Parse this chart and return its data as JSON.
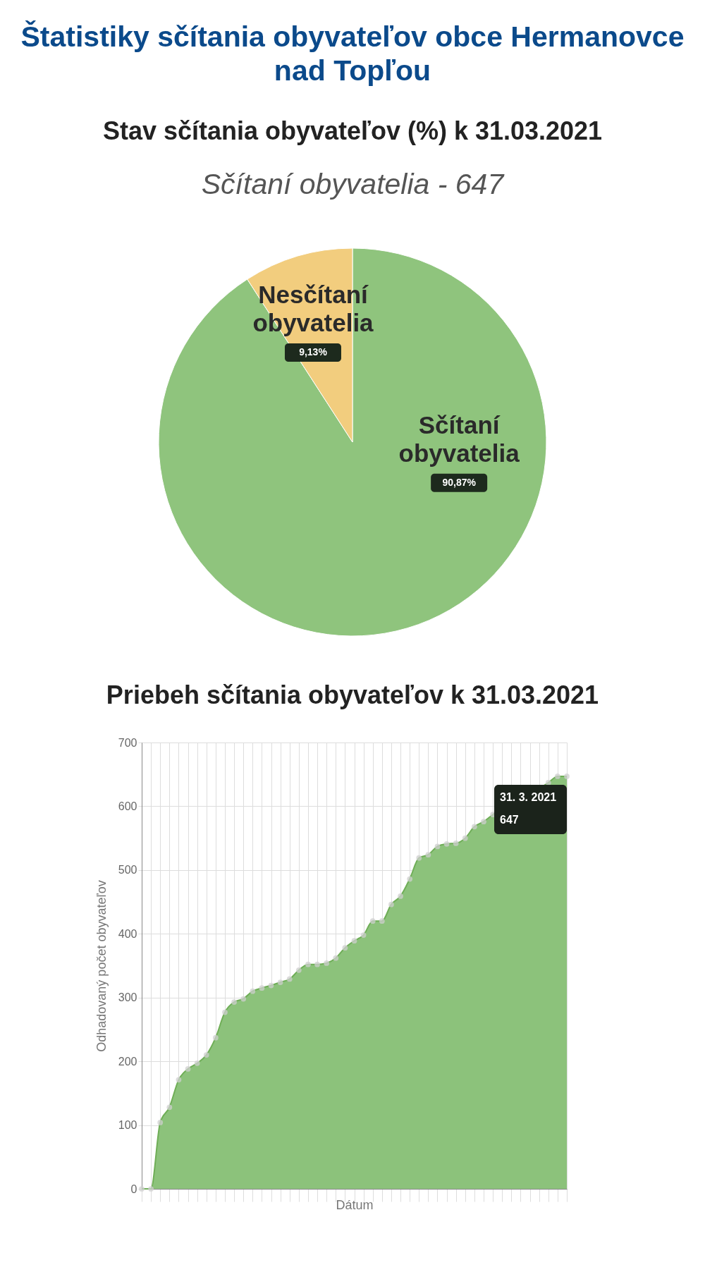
{
  "chart_data": [
    {
      "type": "pie",
      "title": "Štatistiky sčítania obyvateľov obce Hermanovce nad Topľou",
      "subtitle": "Stav sčítania obyvateľov (%) k 31.03.2021",
      "annotations": [
        "Sčítaní obyvatelia - 647"
      ],
      "categories": [
        "Sčítaní obyvatelia",
        "Nesčítaní obyvatelia"
      ],
      "values": [
        90.87,
        9.13
      ],
      "colors": [
        "#8fc47d",
        "#f2cd7e"
      ],
      "value_labels": [
        "90,87%",
        "9,13%"
      ]
    },
    {
      "type": "area",
      "title": "Priebeh sčítania obyvateľov k 31.03.2021",
      "xlabel": "Dátum",
      "ylabel": "Odhadovaný počet obyvateľov",
      "categories": [
        null,
        null,
        null,
        null,
        null,
        null,
        null,
        null,
        null,
        null,
        null,
        null,
        null,
        null,
        null,
        null,
        null,
        null,
        null,
        null,
        null,
        null,
        null,
        null,
        null,
        null,
        null,
        null,
        null,
        null,
        null,
        null,
        null,
        null,
        null,
        null,
        null,
        null,
        null,
        null,
        null,
        null,
        null,
        null,
        null,
        null,
        null
      ],
      "series": [
        {
          "color": "#8cc27b",
          "values": [
            0,
            0,
            104,
            128,
            171,
            188,
            197,
            210,
            237,
            277,
            293,
            298,
            310,
            315,
            319,
            324,
            329,
            343,
            352,
            352,
            354,
            362,
            378,
            389,
            398,
            420,
            420,
            446,
            459,
            486,
            519,
            524,
            537,
            541,
            542,
            550,
            568,
            576,
            587,
            null,
            null,
            null,
            null,
            null,
            637,
            647,
            647
          ]
        }
      ],
      "ylim": [
        0,
        700
      ],
      "yticks": [
        0,
        100,
        200,
        300,
        400,
        500,
        600,
        700
      ],
      "grid": true,
      "marker": "circle",
      "annotations": [
        "31. 3. 2021",
        "647"
      ]
    }
  ]
}
